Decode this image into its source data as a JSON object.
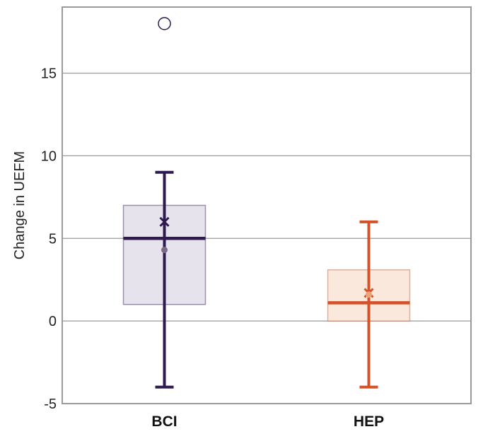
{
  "chart_data": {
    "type": "box",
    "title": "",
    "xlabel": "",
    "ylabel": "Change in UEFM",
    "ylim": [
      -5,
      19
    ],
    "yticks": [
      -5,
      0,
      5,
      10,
      15
    ],
    "grid": true,
    "legend": "none",
    "categories": [
      "BCI",
      "HEP"
    ],
    "boxes": [
      {
        "category": "BCI",
        "whisker_low": -4,
        "q1": 1,
        "median": 5,
        "q3": 7,
        "whisker_high": 9,
        "mean": 6,
        "point": 4.3,
        "outliers": [
          18
        ],
        "color": "#2e1a4f",
        "fill": "#e6e3ec",
        "point_color": "#7a6a85"
      },
      {
        "category": "HEP",
        "whisker_low": -4,
        "q1": 0,
        "median": 1.1,
        "q3": 3.1,
        "whisker_high": 6,
        "mean": 1.7,
        "point": 1.6,
        "outliers": [],
        "color": "#d2522a",
        "fill": "#fbe8dc",
        "point_color": "#f0a07a"
      }
    ]
  }
}
